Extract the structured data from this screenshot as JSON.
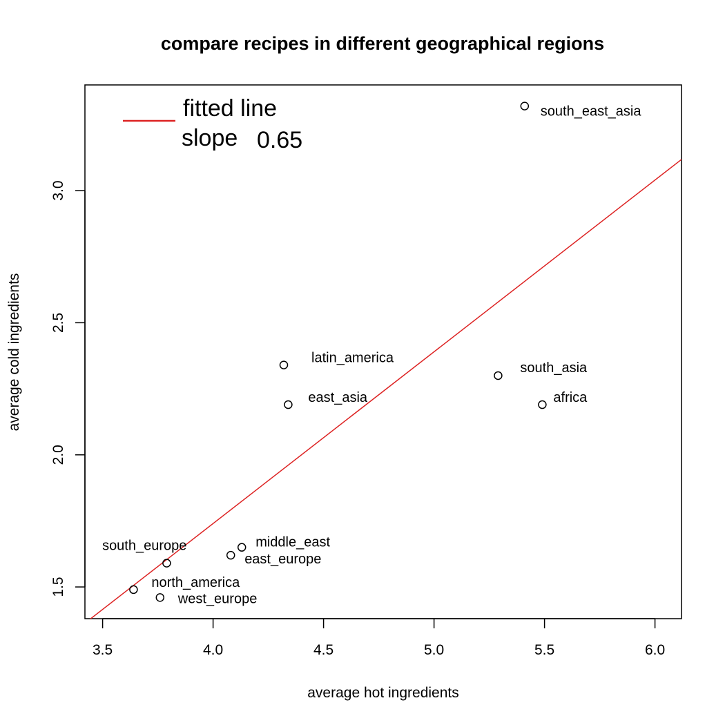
{
  "chart_data": {
    "type": "scatter",
    "title": "compare recipes in different geographical regions",
    "xlabel": "average hot ingredients",
    "ylabel": "average cold ingredients",
    "xlim": [
      3.42,
      6.12
    ],
    "ylim": [
      1.38,
      3.4
    ],
    "x_ticks": [
      3.5,
      4.0,
      4.5,
      5.0,
      5.5,
      6.0
    ],
    "x_tick_labels": [
      "3.5",
      "4.0",
      "4.5",
      "5.0",
      "5.5",
      "6.0"
    ],
    "y_ticks": [
      1.5,
      2.0,
      2.5,
      3.0
    ],
    "y_tick_labels": [
      "1.5",
      "2.0",
      "2.5",
      "3.0"
    ],
    "grid": false,
    "points": [
      {
        "label": "south_east_asia",
        "x": 5.41,
        "y": 3.32
      },
      {
        "label": "latin_america",
        "x": 4.32,
        "y": 2.34
      },
      {
        "label": "south_asia",
        "x": 5.29,
        "y": 2.3
      },
      {
        "label": "east_asia",
        "x": 4.34,
        "y": 2.19
      },
      {
        "label": "africa",
        "x": 5.49,
        "y": 2.19
      },
      {
        "label": "middle_east",
        "x": 4.13,
        "y": 1.65
      },
      {
        "label": "east_europe",
        "x": 4.08,
        "y": 1.62
      },
      {
        "label": "south_europe",
        "x": 3.79,
        "y": 1.59
      },
      {
        "label": "north_america",
        "x": 3.64,
        "y": 1.49
      },
      {
        "label": "west_europe",
        "x": 3.76,
        "y": 1.46
      }
    ],
    "fitted_line": {
      "slope": 0.65,
      "intercept": -0.86,
      "color": "#dd2222"
    },
    "legend": {
      "position": "top-left",
      "line1": "fitted line",
      "line2": "slope",
      "line2_value": "0.65"
    }
  }
}
